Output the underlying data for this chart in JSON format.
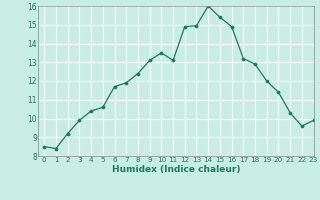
{
  "x": [
    0,
    1,
    2,
    3,
    4,
    5,
    6,
    7,
    8,
    9,
    10,
    11,
    12,
    13,
    14,
    15,
    16,
    17,
    18,
    19,
    20,
    21,
    22,
    23
  ],
  "y": [
    8.5,
    8.4,
    9.2,
    9.9,
    10.4,
    10.6,
    11.7,
    11.9,
    12.4,
    13.1,
    13.5,
    13.1,
    14.9,
    14.95,
    16.0,
    15.4,
    14.9,
    13.2,
    12.9,
    12.0,
    11.4,
    10.3,
    9.6,
    9.9
  ],
  "xlabel": "Humidex (Indice chaleur)",
  "ylim": [
    8,
    16
  ],
  "xlim": [
    -0.5,
    23
  ],
  "yticks": [
    8,
    9,
    10,
    11,
    12,
    13,
    14,
    15,
    16
  ],
  "xticks": [
    0,
    1,
    2,
    3,
    4,
    5,
    6,
    7,
    8,
    9,
    10,
    11,
    12,
    13,
    14,
    15,
    16,
    17,
    18,
    19,
    20,
    21,
    22,
    23
  ],
  "line_color": "#1a7a60",
  "marker_color": "#1a7a60",
  "bg_color": "#c8eee4",
  "grid_color": "#ffffff",
  "spine_color": "#888888"
}
